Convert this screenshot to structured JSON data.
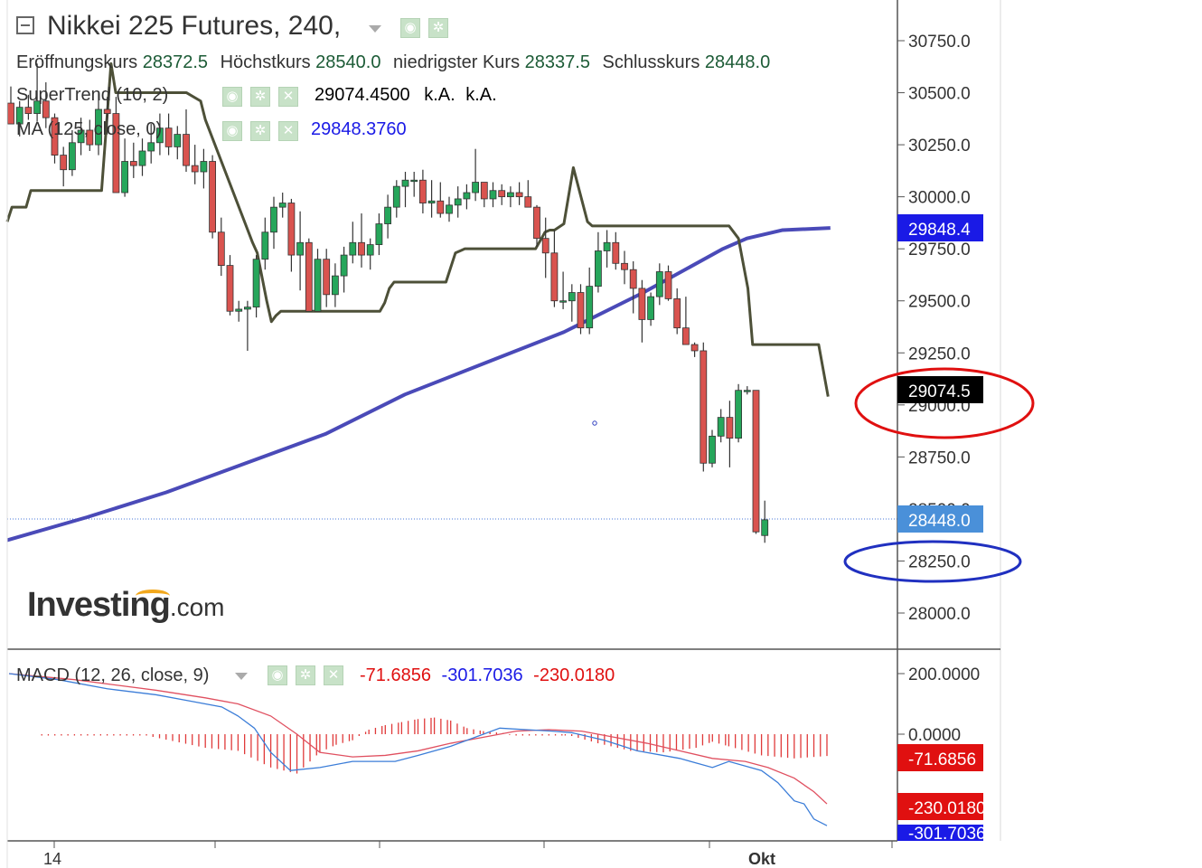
{
  "header": {
    "title": "Nikkei 225 Futures, 240,",
    "ohlc": [
      {
        "label": "Eröffnungskurs",
        "value": "28372.5"
      },
      {
        "label": "Höchstkurs",
        "value": "28540.0"
      },
      {
        "label": "niedrigster Kurs",
        "value": "28337.5"
      },
      {
        "label": "Schlusskurs",
        "value": "28448.0"
      }
    ]
  },
  "indicators": {
    "supertrend": {
      "label": "SuperTrend (10, 2)",
      "value": "29074.4500",
      "extra1": "k.A.",
      "extra2": "k.A."
    },
    "ma": {
      "label": "MA (125, close, 0)",
      "value": "29848.3760"
    },
    "macd": {
      "label": "MACD (12, 26, close, 9)",
      "hist": "-71.6856",
      "macd": "-301.7036",
      "signal": "-230.0180"
    }
  },
  "colors": {
    "up": "#26a65b",
    "down": "#d9534f",
    "supertrend": "#4d5038",
    "ma": "#4a4ab8",
    "macd_line": "#3b7dd8",
    "signal_line": "#e05060",
    "hist": "#e03a3a",
    "price_tag_last": "#4a90d9",
    "price_tag_ma": "#1a1ae6",
    "price_tag_st": "#000000"
  },
  "icons": [
    "settings-eye-icon",
    "gear-icon",
    "close-icon",
    "collapse-icon",
    "dropdown-caret-icon"
  ],
  "logo": {
    "brand": "Investing",
    "domain": ".com"
  },
  "chart_data": [
    {
      "type": "candlestick",
      "title": "Nikkei 225 Futures, 240,",
      "ylim": [
        27750,
        30850
      ],
      "yticks": [
        "30750.0",
        "30500.0",
        "30250.0",
        "30000.0",
        "29750.0",
        "29500.0",
        "29250.0",
        "29000.0",
        "28750.0",
        "28500.0",
        "28250.0",
        "28000.0"
      ],
      "xticks": [
        "14",
        "Okt"
      ],
      "price_tags": {
        "ma": "29848.4",
        "supertrend": "29074.5",
        "last": "28448.0"
      },
      "candles": [
        [
          30450,
          30530,
          30360,
          30350
        ],
        [
          30350,
          30460,
          30290,
          30430
        ],
        [
          30430,
          30490,
          30370,
          30400
        ],
        [
          30400,
          30640,
          30360,
          30460
        ],
        [
          30460,
          30550,
          30330,
          30380
        ],
        [
          30380,
          30400,
          30160,
          30200
        ],
        [
          30200,
          30240,
          30050,
          30130
        ],
        [
          30130,
          30320,
          30100,
          30260
        ],
        [
          30260,
          30380,
          30200,
          30320
        ],
        [
          30320,
          30370,
          30220,
          30250
        ],
        [
          30250,
          30500,
          30200,
          30420
        ],
        [
          30420,
          30480,
          30300,
          30400
        ],
        [
          30400,
          30480,
          30020,
          30020
        ],
        [
          30020,
          30280,
          30000,
          30170
        ],
        [
          30170,
          30260,
          30090,
          30150
        ],
        [
          30150,
          30280,
          30100,
          30220
        ],
        [
          30220,
          30350,
          30160,
          30260
        ],
        [
          30260,
          30400,
          30200,
          30330
        ],
        [
          30330,
          30400,
          30200,
          30240
        ],
        [
          30240,
          30340,
          30180,
          30300
        ],
        [
          30300,
          30420,
          30120,
          30150
        ],
        [
          30150,
          30250,
          30060,
          30120
        ],
        [
          30120,
          30230,
          30040,
          30170
        ],
        [
          30170,
          30200,
          29800,
          29830
        ],
        [
          29830,
          29900,
          29620,
          29670
        ],
        [
          29670,
          29720,
          29430,
          29450
        ],
        [
          29450,
          29500,
          29400,
          29460
        ],
        [
          29460,
          29500,
          29260,
          29470
        ],
        [
          29470,
          29720,
          29420,
          29700
        ],
        [
          29700,
          29900,
          29650,
          29830
        ],
        [
          29830,
          30000,
          29750,
          29950
        ],
        [
          29950,
          30020,
          29900,
          29970
        ],
        [
          29970,
          29990,
          29640,
          29720
        ],
        [
          29720,
          29930,
          29550,
          29780
        ],
        [
          29780,
          29800,
          29460,
          29450
        ],
        [
          29450,
          29750,
          29450,
          29700
        ],
        [
          29700,
          29750,
          29470,
          29530
        ],
        [
          29530,
          29680,
          29470,
          29620
        ],
        [
          29620,
          29760,
          29540,
          29720
        ],
        [
          29720,
          29880,
          29680,
          29780
        ],
        [
          29780,
          29920,
          29660,
          29720
        ],
        [
          29720,
          29800,
          29650,
          29770
        ],
        [
          29770,
          29920,
          29720,
          29870
        ],
        [
          29870,
          30010,
          29800,
          29950
        ],
        [
          29950,
          30080,
          29900,
          30050
        ],
        [
          30050,
          30120,
          29950,
          30080
        ],
        [
          30080,
          30120,
          30000,
          30080
        ],
        [
          30080,
          30130,
          29920,
          29970
        ],
        [
          29970,
          30080,
          29900,
          29980
        ],
        [
          29980,
          30070,
          29900,
          29920
        ],
        [
          29920,
          30000,
          29880,
          29960
        ],
        [
          29960,
          30050,
          29900,
          29990
        ],
        [
          29990,
          30060,
          29940,
          30020
        ],
        [
          30020,
          30230,
          29980,
          30070
        ],
        [
          30070,
          30070,
          29950,
          29990
        ],
        [
          29990,
          30070,
          29950,
          30030
        ],
        [
          30030,
          30060,
          29960,
          30000
        ],
        [
          30000,
          30050,
          29950,
          30020
        ],
        [
          30020,
          30070,
          29960,
          30000
        ],
        [
          30000,
          30080,
          29960,
          29950
        ],
        [
          29950,
          29960,
          29760,
          29800
        ],
        [
          29800,
          29900,
          29610,
          29730
        ],
        [
          29730,
          29840,
          29470,
          29500
        ],
        [
          29500,
          29640,
          29460,
          29500
        ],
        [
          29500,
          29580,
          29400,
          29540
        ],
        [
          29540,
          29580,
          29340,
          29370
        ],
        [
          29370,
          29660,
          29340,
          29570
        ],
        [
          29570,
          29830,
          29540,
          29740
        ],
        [
          29740,
          29840,
          29660,
          29780
        ],
        [
          29780,
          29830,
          29650,
          29680
        ],
        [
          29680,
          29740,
          29580,
          29650
        ],
        [
          29650,
          29690,
          29440,
          29560
        ],
        [
          29560,
          29600,
          29300,
          29410
        ],
        [
          29410,
          29540,
          29380,
          29520
        ],
        [
          29520,
          29680,
          29480,
          29640
        ],
        [
          29640,
          29670,
          29500,
          29510
        ],
        [
          29510,
          29560,
          29340,
          29370
        ],
        [
          29370,
          29520,
          29300,
          29290
        ],
        [
          29290,
          29300,
          29230,
          29260
        ],
        [
          29260,
          29300,
          28680,
          28720
        ],
        [
          28720,
          28880,
          28700,
          28850
        ],
        [
          28850,
          28980,
          28820,
          28940
        ],
        [
          28940,
          29020,
          28700,
          28840
        ],
        [
          28840,
          29100,
          28820,
          29070
        ],
        [
          29070,
          29090,
          29050,
          29070
        ],
        [
          29070,
          29070,
          28380,
          28390
        ],
        [
          28372.5,
          28540,
          28337.5,
          28448
        ]
      ],
      "supertrend": [
        [
          0,
          29880
        ],
        [
          1,
          29950
        ],
        [
          4,
          29950
        ],
        [
          5,
          30030
        ],
        [
          20,
          30030
        ],
        [
          22,
          30640
        ],
        [
          23,
          30500
        ],
        [
          38,
          30500
        ],
        [
          41,
          30460
        ],
        [
          42,
          30370
        ],
        [
          52,
          29780
        ],
        [
          53,
          29730
        ],
        [
          55,
          29500
        ],
        [
          56,
          29400
        ],
        [
          57,
          29430
        ],
        [
          58,
          29450
        ],
        [
          79,
          29450
        ],
        [
          80,
          29490
        ],
        [
          81,
          29560
        ],
        [
          82,
          29590
        ],
        [
          93,
          29590
        ],
        [
          95,
          29730
        ],
        [
          97,
          29750
        ],
        [
          112,
          29750
        ],
        [
          114,
          29830
        ],
        [
          115,
          29840
        ],
        [
          116,
          29840
        ],
        [
          118,
          29870
        ],
        [
          120,
          30140
        ],
        [
          123,
          29880
        ],
        [
          124,
          29860
        ],
        [
          153,
          29860
        ],
        [
          155,
          29800
        ],
        [
          157,
          29560
        ],
        [
          158,
          29290
        ],
        [
          172,
          29290
        ],
        [
          174,
          29040
        ]
      ],
      "ma": [
        [
          0,
          28350
        ],
        [
          20,
          28460
        ],
        [
          40,
          28580
        ],
        [
          60,
          28720
        ],
        [
          80,
          28860
        ],
        [
          100,
          29050
        ],
        [
          120,
          29200
        ],
        [
          140,
          29350
        ],
        [
          160,
          29540
        ],
        [
          180,
          29750
        ],
        [
          186,
          29800
        ],
        [
          195,
          29840
        ],
        [
          207,
          29850
        ]
      ]
    },
    {
      "type": "macd",
      "title": "MACD (12, 26, close, 9)",
      "ylim": [
        -350,
        260
      ],
      "yticks": [
        "200.0000",
        "0.0000"
      ],
      "tags": {
        "hist": "-71.6856",
        "signal": "-230.0180",
        "macd": "-301.7036"
      },
      "macd_line": [
        [
          0,
          200
        ],
        [
          15,
          180
        ],
        [
          30,
          150
        ],
        [
          45,
          130
        ],
        [
          55,
          110
        ],
        [
          65,
          90
        ],
        [
          70,
          60
        ],
        [
          75,
          20
        ],
        [
          80,
          -60
        ],
        [
          86,
          -120
        ],
        [
          95,
          -110
        ],
        [
          105,
          -90
        ],
        [
          118,
          -90
        ],
        [
          125,
          -70
        ],
        [
          135,
          -40
        ],
        [
          145,
          0
        ],
        [
          150,
          20
        ],
        [
          158,
          15
        ],
        [
          166,
          10
        ],
        [
          172,
          5
        ],
        [
          182,
          -20
        ],
        [
          192,
          -55
        ],
        [
          205,
          -80
        ],
        [
          215,
          -110
        ],
        [
          220,
          -90
        ],
        [
          230,
          -120
        ],
        [
          235,
          -160
        ],
        [
          240,
          -220
        ],
        [
          243,
          -230
        ],
        [
          246,
          -280
        ],
        [
          250,
          -302
        ]
      ],
      "signal_line": [
        [
          0,
          200
        ],
        [
          20,
          180
        ],
        [
          45,
          145
        ],
        [
          60,
          120
        ],
        [
          70,
          100
        ],
        [
          80,
          60
        ],
        [
          88,
          0
        ],
        [
          95,
          -60
        ],
        [
          105,
          -75
        ],
        [
          115,
          -70
        ],
        [
          125,
          -55
        ],
        [
          135,
          -30
        ],
        [
          145,
          -10
        ],
        [
          155,
          10
        ],
        [
          165,
          15
        ],
        [
          175,
          10
        ],
        [
          185,
          -10
        ],
        [
          195,
          -30
        ],
        [
          205,
          -55
        ],
        [
          215,
          -80
        ],
        [
          225,
          -90
        ],
        [
          232,
          -110
        ],
        [
          240,
          -145
        ],
        [
          246,
          -190
        ],
        [
          250,
          -230
        ]
      ],
      "histogram": [
        [
          10,
          0
        ],
        [
          40,
          0
        ],
        [
          60,
          -45
        ],
        [
          70,
          -55
        ],
        [
          80,
          -110
        ],
        [
          88,
          -130
        ],
        [
          95,
          -60
        ],
        [
          100,
          -35
        ],
        [
          105,
          -20
        ],
        [
          110,
          15
        ],
        [
          115,
          30
        ],
        [
          120,
          40
        ],
        [
          125,
          50
        ],
        [
          130,
          55
        ],
        [
          135,
          45
        ],
        [
          140,
          20
        ],
        [
          145,
          10
        ],
        [
          155,
          0
        ],
        [
          170,
          0
        ],
        [
          180,
          -30
        ],
        [
          190,
          -55
        ],
        [
          200,
          -60
        ],
        [
          210,
          -45
        ],
        [
          215,
          -25
        ],
        [
          220,
          -40
        ],
        [
          230,
          -70
        ],
        [
          240,
          -80
        ],
        [
          250,
          -72
        ]
      ]
    }
  ]
}
